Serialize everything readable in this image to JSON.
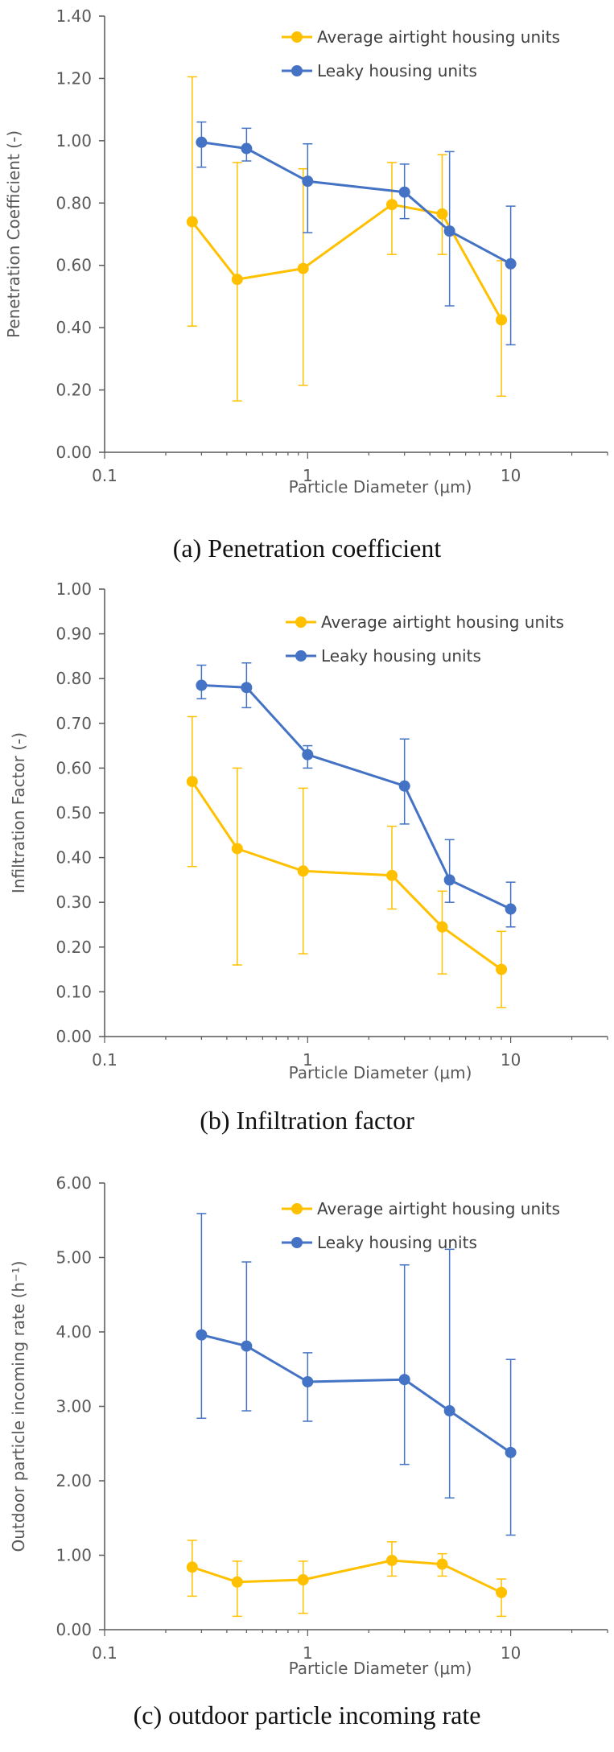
{
  "colors": {
    "airtight": "#FFC000",
    "leaky": "#4472C4",
    "axis": "#595959",
    "text": "#595959"
  },
  "chart_data": [
    {
      "type": "line",
      "caption": "(a) Penetration coefficient",
      "xlabel": "Particle Diameter (μm)",
      "ylabel": "Penetration Coefficient (-)",
      "x_scale": "log",
      "xlim": [
        0.1,
        30
      ],
      "x_ticks": [
        {
          "v": 0.1,
          "label": "0.1"
        },
        {
          "v": 1,
          "label": "1"
        },
        {
          "v": 10,
          "label": "10"
        }
      ],
      "ylim": [
        0,
        1.4
      ],
      "y_ticks": [
        {
          "v": 0,
          "label": "0.00"
        },
        {
          "v": 0.2,
          "label": "0.20"
        },
        {
          "v": 0.4,
          "label": "0.40"
        },
        {
          "v": 0.6,
          "label": "0.60"
        },
        {
          "v": 0.8,
          "label": "0.80"
        },
        {
          "v": 1.0,
          "label": "1.00"
        },
        {
          "v": 1.2,
          "label": "1.20"
        },
        {
          "v": 1.4,
          "label": "1.40"
        }
      ],
      "grid": false,
      "legend_position": "top-right",
      "series": [
        {
          "name": "Average airtight housing units",
          "color": "#FFC000",
          "x": [
            0.27,
            0.45,
            0.95,
            2.6,
            4.6,
            9.0
          ],
          "y": [
            0.74,
            0.555,
            0.59,
            0.795,
            0.765,
            0.425
          ],
          "err_lo": [
            0.405,
            0.165,
            0.215,
            0.635,
            0.635,
            0.18
          ],
          "err_hi": [
            1.205,
            0.93,
            0.91,
            0.93,
            0.955,
            0.615
          ]
        },
        {
          "name": "Leaky housing units",
          "color": "#4472C4",
          "x": [
            0.3,
            0.5,
            1.0,
            3.0,
            5.0,
            10.0
          ],
          "y": [
            0.995,
            0.975,
            0.87,
            0.835,
            0.71,
            0.605
          ],
          "err_lo": [
            0.915,
            0.935,
            0.705,
            0.75,
            0.47,
            0.345
          ],
          "err_hi": [
            1.06,
            1.04,
            0.99,
            0.925,
            0.965,
            0.79
          ]
        }
      ]
    },
    {
      "type": "line",
      "caption": "(b) Infiltration factor",
      "xlabel": "Particle Diameter (μm)",
      "ylabel": "Infiltration Factor (-)",
      "x_scale": "log",
      "xlim": [
        0.1,
        30
      ],
      "x_ticks": [
        {
          "v": 0.1,
          "label": "0.1"
        },
        {
          "v": 1,
          "label": "1"
        },
        {
          "v": 10,
          "label": "10"
        }
      ],
      "ylim": [
        0,
        1.0
      ],
      "y_ticks": [
        {
          "v": 0,
          "label": "0.00"
        },
        {
          "v": 0.1,
          "label": "0.10"
        },
        {
          "v": 0.2,
          "label": "0.20"
        },
        {
          "v": 0.3,
          "label": "0.30"
        },
        {
          "v": 0.4,
          "label": "0.40"
        },
        {
          "v": 0.5,
          "label": "0.50"
        },
        {
          "v": 0.6,
          "label": "0.60"
        },
        {
          "v": 0.7,
          "label": "0.70"
        },
        {
          "v": 0.8,
          "label": "0.80"
        },
        {
          "v": 0.9,
          "label": "0.90"
        },
        {
          "v": 1.0,
          "label": "1.00"
        }
      ],
      "grid": false,
      "legend_position": "top-right",
      "series": [
        {
          "name": "Average airtight housing units",
          "color": "#FFC000",
          "x": [
            0.27,
            0.45,
            0.95,
            2.6,
            4.6,
            9.0
          ],
          "y": [
            0.57,
            0.42,
            0.37,
            0.36,
            0.245,
            0.15
          ],
          "err_lo": [
            0.38,
            0.16,
            0.185,
            0.285,
            0.14,
            0.065
          ],
          "err_hi": [
            0.715,
            0.6,
            0.555,
            0.47,
            0.325,
            0.235
          ]
        },
        {
          "name": "Leaky housing units",
          "color": "#4472C4",
          "x": [
            0.3,
            0.5,
            1.0,
            3.0,
            5.0,
            10.0
          ],
          "y": [
            0.785,
            0.78,
            0.63,
            0.56,
            0.35,
            0.285
          ],
          "err_lo": [
            0.755,
            0.735,
            0.6,
            0.475,
            0.3,
            0.245
          ],
          "err_hi": [
            0.83,
            0.835,
            0.65,
            0.665,
            0.44,
            0.345
          ]
        }
      ]
    },
    {
      "type": "line",
      "caption": "(c) outdoor particle incoming rate",
      "xlabel": "Particle Diameter (μm)",
      "ylabel": "Outdoor particle incoming rate (h⁻¹)",
      "x_scale": "log",
      "xlim": [
        0.1,
        30
      ],
      "x_ticks": [
        {
          "v": 0.1,
          "label": "0.1"
        },
        {
          "v": 1,
          "label": "1"
        },
        {
          "v": 10,
          "label": "10"
        }
      ],
      "ylim": [
        0,
        6.0
      ],
      "y_ticks": [
        {
          "v": 0,
          "label": "0.00"
        },
        {
          "v": 1,
          "label": "1.00"
        },
        {
          "v": 2,
          "label": "2.00"
        },
        {
          "v": 3,
          "label": "3.00"
        },
        {
          "v": 4,
          "label": "4.00"
        },
        {
          "v": 5,
          "label": "5.00"
        },
        {
          "v": 6,
          "label": "6.00"
        }
      ],
      "grid": false,
      "legend_position": "top-right",
      "series": [
        {
          "name": "Average airtight housing units",
          "color": "#FFC000",
          "x": [
            0.27,
            0.45,
            0.95,
            2.6,
            4.6,
            9.0
          ],
          "y": [
            0.84,
            0.64,
            0.67,
            0.93,
            0.88,
            0.5
          ],
          "err_lo": [
            0.45,
            0.18,
            0.22,
            0.72,
            0.72,
            0.18
          ],
          "err_hi": [
            1.2,
            0.92,
            0.92,
            1.18,
            1.02,
            0.68
          ]
        },
        {
          "name": "Leaky housing units",
          "color": "#4472C4",
          "x": [
            0.3,
            0.5,
            1.0,
            3.0,
            5.0,
            10.0
          ],
          "y": [
            3.96,
            3.81,
            3.33,
            3.36,
            2.94,
            2.38
          ],
          "err_lo": [
            2.84,
            2.94,
            2.8,
            2.22,
            1.77,
            1.27
          ],
          "err_hi": [
            5.59,
            4.94,
            3.72,
            4.9,
            5.11,
            3.63
          ]
        }
      ]
    }
  ]
}
